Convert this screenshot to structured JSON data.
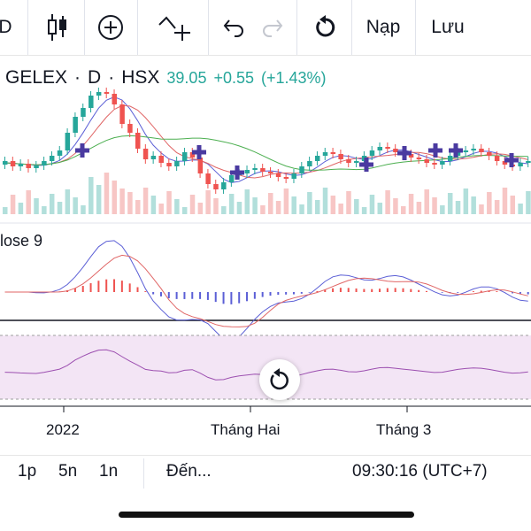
{
  "toolbar": {
    "left_partial": "D",
    "load_label": "Nạp",
    "save_label": "Lưu"
  },
  "legend": {
    "symbol": "GELEX",
    "separator": "·",
    "interval": "D",
    "exchange": "HSX",
    "price": "39.05",
    "change": "+0.55",
    "change_pct": "(+1.43%)"
  },
  "macd": {
    "label": "lose 9"
  },
  "x_axis": {
    "labels": [
      "2022",
      "Tháng Hai",
      "Tháng 3"
    ]
  },
  "bottombar": {
    "range_1d": "1p",
    "range_5d": "5n",
    "range_1y": "1n",
    "goto_label": "Đến...",
    "clock": "09:30:16 (UTC+7)"
  },
  "colors": {
    "up": "#26a69a",
    "down": "#ef5350",
    "vol_up": "#b2dfdb",
    "vol_down": "#f7c6c5",
    "ma_blue": "#5b5fd6",
    "ma_red": "#e06666",
    "ma_green": "#4caf50",
    "rsi_bg": "#f3e5f5",
    "rsi_line": "#9c4fb0",
    "marker": "#4a3aa0"
  }
}
